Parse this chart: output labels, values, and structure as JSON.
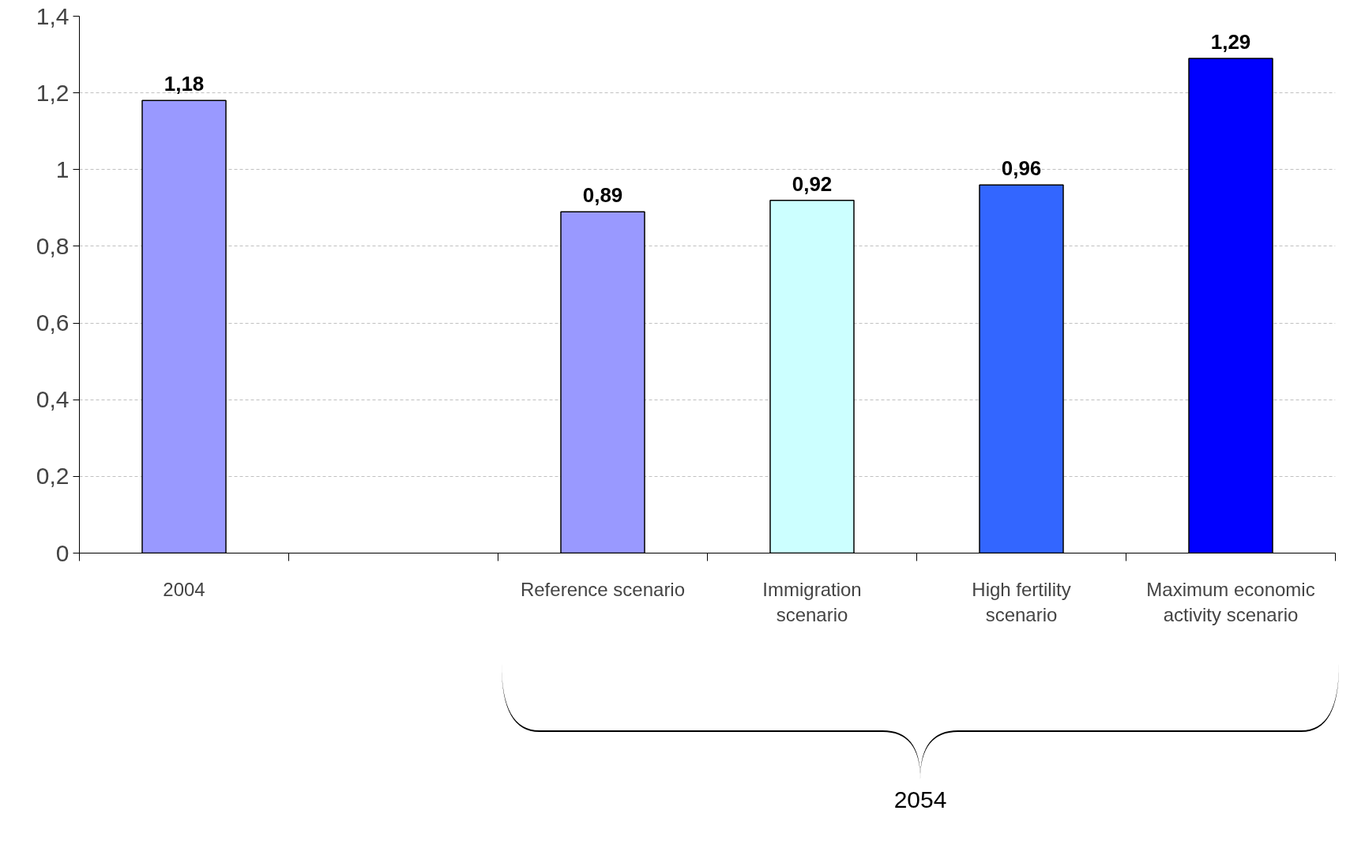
{
  "chart_data": {
    "type": "bar",
    "categories": [
      "2004",
      null,
      "Reference scenario",
      "Immigration scenario",
      "High fertility scenario",
      "Maximum economic activity scenario"
    ],
    "values": [
      1.18,
      null,
      0.89,
      0.92,
      0.96,
      1.29
    ],
    "colors": [
      "#9999ff",
      "#9999ff",
      "#9999ff",
      "#ccffff",
      "#3366ff",
      "#0000ff"
    ],
    "value_labels": [
      "1,18",
      null,
      "0,89",
      "0,92",
      "0,96",
      "1,29"
    ],
    "ylim": [
      0,
      1.4
    ],
    "yticks": [
      0,
      {
        "value": 0.2,
        "label": "0,2"
      },
      {
        "value": 0.4,
        "label": "0,4"
      },
      {
        "value": 0.6,
        "label": "0,6"
      },
      {
        "value": 0.8,
        "label": "0,8"
      },
      1,
      {
        "value": 1.2,
        "label": "1,2"
      },
      {
        "value": 1.4,
        "label": "1,4"
      }
    ],
    "grid": "y",
    "annotations": [
      "2054"
    ]
  }
}
